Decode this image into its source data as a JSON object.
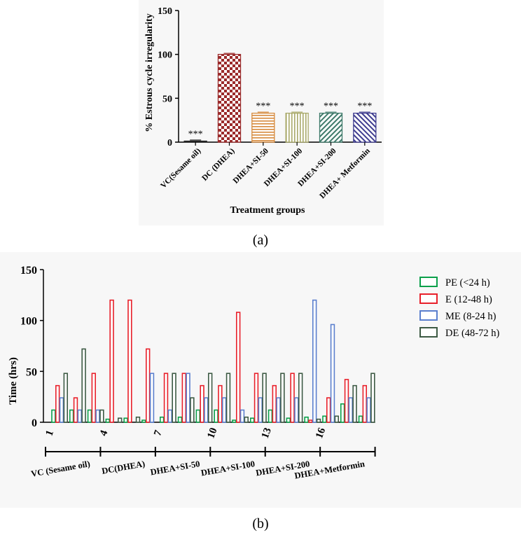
{
  "chart_data": [
    {
      "panel_label": "(a)",
      "type": "bar",
      "ylabel": "% Estrous cycle irregularity",
      "xlabel": "Treatment groups",
      "ylim": [
        0,
        150
      ],
      "yticks": [
        "0",
        "50",
        "100",
        "150"
      ],
      "categories": [
        "VC(Sesame oil)",
        "DC (DHEA)",
        "DHEA+SI-50",
        "DHEA+SI-100",
        "DHEA+SI-200",
        "DHEA+ Metformin"
      ],
      "values": [
        1,
        100,
        33,
        33,
        33,
        33
      ],
      "annotations": [
        "***",
        "",
        "***",
        "***",
        "***",
        "***"
      ],
      "bar_colors": [
        "#222222",
        "#9b2b2b",
        "#d68a3c",
        "#a9a96a",
        "#3f7a6a",
        "#3f3d8f"
      ],
      "patterns": [
        "solid",
        "checker",
        "hlines",
        "vlines",
        "diagonal",
        "diagonal-rev"
      ]
    },
    {
      "panel_label": "(b)",
      "type": "bar",
      "ylabel": "Time (hrs)",
      "xlabel": "",
      "ylim": [
        0,
        150
      ],
      "yticks": [
        "0",
        "50",
        "100",
        "150"
      ],
      "x_ticks": [
        "1",
        "4",
        "7",
        "10",
        "13",
        "16"
      ],
      "groups": [
        "VC (Sesame oil)",
        "DC(DHEA)",
        "DHEA+SI-50",
        "DHEA+SI-100",
        "DHEA+SI-200",
        "DHEA+Metformin"
      ],
      "series": [
        {
          "name": "PE (<24 h)",
          "color": "#0aa04a",
          "values": [
            12,
            12,
            12,
            3,
            4,
            2,
            5,
            5,
            12,
            12,
            2,
            4,
            12,
            4,
            5,
            6,
            18,
            6
          ]
        },
        {
          "name": "E (12-48 h)",
          "color": "#e8202a",
          "values": [
            36,
            24,
            48,
            120,
            120,
            72,
            48,
            48,
            36,
            36,
            108,
            48,
            36,
            48,
            2,
            24,
            42,
            36
          ]
        },
        {
          "name": "ME (8-24 h)",
          "color": "#5b7fce",
          "values": [
            24,
            12,
            12,
            0,
            0,
            48,
            12,
            48,
            24,
            24,
            12,
            24,
            24,
            24,
            120,
            96,
            24,
            24
          ]
        },
        {
          "name": "DE (48-72 h)",
          "color": "#3d5a44",
          "values": [
            48,
            72,
            12,
            4,
            5,
            0,
            48,
            24,
            48,
            48,
            5,
            48,
            48,
            48,
            3,
            6,
            36,
            48
          ]
        }
      ]
    }
  ]
}
